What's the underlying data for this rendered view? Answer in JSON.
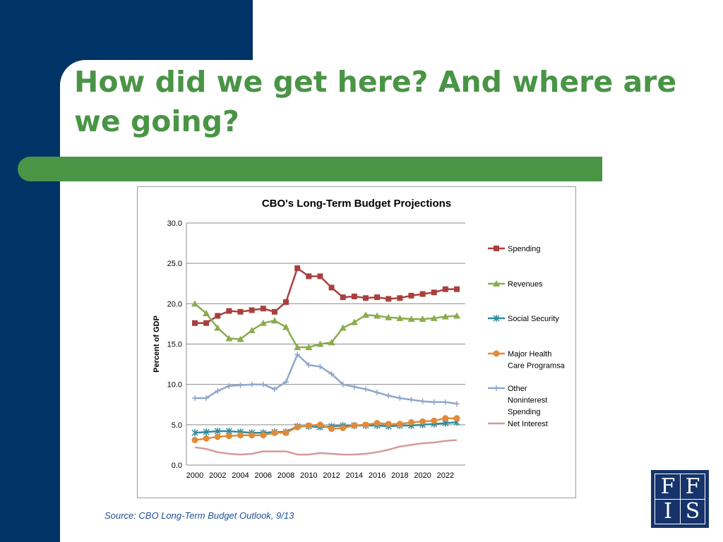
{
  "slide": {
    "title": "How did we get here? And where are we going?",
    "source": "Source: CBO Long-Term Budget Outlook, 9/13",
    "logo_letters": [
      "F",
      "F",
      "I",
      "S"
    ]
  },
  "colors": {
    "band": "#003366",
    "title": "#4a9446",
    "bar": "#4a9446",
    "source": "#1f4e9a"
  },
  "chart_data": {
    "type": "line",
    "title": "CBO's Long-Term Budget Projections",
    "ylabel": "Percent of GDP",
    "xlabel": "",
    "ylim": [
      0,
      30
    ],
    "yticks": [
      "0.0",
      "5.0",
      "10.0",
      "15.0",
      "20.0",
      "25.0",
      "30.0"
    ],
    "x": [
      2000,
      2001,
      2002,
      2003,
      2004,
      2005,
      2006,
      2007,
      2008,
      2009,
      2010,
      2011,
      2012,
      2013,
      2014,
      2015,
      2016,
      2017,
      2018,
      2019,
      2020,
      2021,
      2022,
      2023
    ],
    "xticks": [
      "2000",
      "2002",
      "2004",
      "2006",
      "2008",
      "2010",
      "2012",
      "2014",
      "2016",
      "2018",
      "2020",
      "2022"
    ],
    "grid": true,
    "legend": "right",
    "series": [
      {
        "name": "Spending",
        "color": "#a9403e",
        "marker": "square",
        "values": [
          17.6,
          17.6,
          18.5,
          19.1,
          19.0,
          19.2,
          19.4,
          19.0,
          20.2,
          24.4,
          23.4,
          23.4,
          22.0,
          20.8,
          20.9,
          20.7,
          20.8,
          20.6,
          20.7,
          21.0,
          21.2,
          21.4,
          21.8,
          21.8
        ]
      },
      {
        "name": "Revenues",
        "color": "#8aac4e",
        "marker": "triangle",
        "values": [
          20.0,
          18.8,
          17.0,
          15.7,
          15.6,
          16.7,
          17.6,
          17.9,
          17.1,
          14.6,
          14.6,
          15.0,
          15.2,
          17.0,
          17.7,
          18.6,
          18.5,
          18.3,
          18.2,
          18.1,
          18.1,
          18.2,
          18.4,
          18.5
        ]
      },
      {
        "name": "Social Security",
        "color": "#2f8a9e",
        "marker": "star",
        "values": [
          4.0,
          4.1,
          4.2,
          4.2,
          4.1,
          4.0,
          4.0,
          4.1,
          4.1,
          4.8,
          4.8,
          4.7,
          4.8,
          4.9,
          4.9,
          4.9,
          4.9,
          4.8,
          4.9,
          4.9,
          5.0,
          5.1,
          5.2,
          5.3
        ]
      },
      {
        "name": "Major Health Care Programsa",
        "color": "#e08b3a",
        "marker": "circle",
        "values": [
          3.1,
          3.3,
          3.5,
          3.6,
          3.7,
          3.7,
          3.7,
          4.0,
          4.0,
          4.7,
          4.9,
          5.0,
          4.5,
          4.6,
          4.9,
          5.0,
          5.2,
          5.1,
          5.1,
          5.3,
          5.4,
          5.5,
          5.8,
          5.8
        ]
      },
      {
        "name": "Other Noninterest Spending",
        "color": "#8ea7cc",
        "marker": "plus",
        "values": [
          8.3,
          8.3,
          9.2,
          9.8,
          9.9,
          10.0,
          10.0,
          9.4,
          10.3,
          13.7,
          12.4,
          12.2,
          11.3,
          10.0,
          9.7,
          9.4,
          9.0,
          8.6,
          8.3,
          8.1,
          7.9,
          7.8,
          7.8,
          7.6
        ]
      },
      {
        "name": "Net Interest",
        "color": "#d59a9a",
        "marker": "none",
        "values": [
          2.2,
          2.0,
          1.6,
          1.4,
          1.3,
          1.4,
          1.7,
          1.7,
          1.7,
          1.3,
          1.3,
          1.5,
          1.4,
          1.3,
          1.3,
          1.4,
          1.6,
          1.9,
          2.3,
          2.5,
          2.7,
          2.8,
          3.0,
          3.1
        ]
      }
    ]
  }
}
